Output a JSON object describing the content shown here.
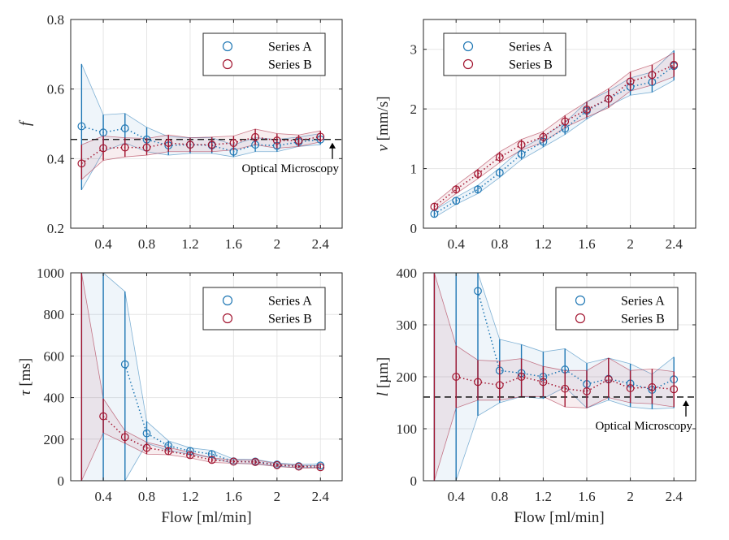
{
  "xlabel": "Flow [ml/min]",
  "colors": {
    "A": "#1f77b4",
    "B": "#a2142f"
  },
  "chart_data": [
    {
      "id": "f",
      "type": "line",
      "ylabel": "f",
      "ylabel_unit": "",
      "ylim": [
        0.2,
        0.8
      ],
      "yticks": [
        "0.2",
        "0.4",
        "0.6",
        "0.8"
      ],
      "ytick_values": [
        0.2,
        0.4,
        0.6,
        0.8
      ],
      "xlim": [
        0.1,
        2.6
      ],
      "xticks": [
        "0.4",
        "0.8",
        "1.2",
        "1.6",
        "2",
        "2.4"
      ],
      "xtick_values": [
        0.4,
        0.8,
        1.2,
        1.6,
        2.0,
        2.4
      ],
      "x": [
        0.2,
        0.4,
        0.6,
        0.8,
        1.0,
        1.2,
        1.4,
        1.6,
        1.8,
        2.0,
        2.2,
        2.4
      ],
      "series": [
        {
          "name": "Series A",
          "values": [
            0.493,
            0.475,
            0.487,
            0.455,
            0.438,
            0.44,
            0.438,
            0.42,
            0.44,
            0.437,
            0.448,
            0.455
          ],
          "lower": [
            0.31,
            0.42,
            0.445,
            0.42,
            0.41,
            0.415,
            0.415,
            0.405,
            0.42,
            0.42,
            0.435,
            0.44
          ],
          "upper": [
            0.672,
            0.526,
            0.53,
            0.49,
            0.463,
            0.46,
            0.46,
            0.44,
            0.46,
            0.455,
            0.462,
            0.472
          ]
        },
        {
          "name": "Series B",
          "values": [
            0.386,
            0.43,
            0.432,
            0.432,
            0.445,
            0.44,
            0.44,
            0.445,
            0.462,
            0.452,
            0.452,
            0.463
          ],
          "lower": [
            0.34,
            0.395,
            0.405,
            0.41,
            0.42,
            0.42,
            0.42,
            0.425,
            0.44,
            0.43,
            0.435,
            0.448
          ],
          "upper": [
            0.44,
            0.465,
            0.46,
            0.458,
            0.468,
            0.46,
            0.462,
            0.465,
            0.485,
            0.472,
            0.468,
            0.48
          ]
        }
      ],
      "reference": {
        "value": 0.455,
        "label": "Optical Microscopy"
      },
      "legend": [
        "Series A",
        "Series B"
      ]
    },
    {
      "id": "v",
      "type": "line",
      "ylabel": "v",
      "ylabel_unit": "[mm/s]",
      "ylim": [
        0,
        3.5
      ],
      "yticks": [
        "0",
        "1",
        "2",
        "3"
      ],
      "ytick_values": [
        0,
        1,
        2,
        3
      ],
      "xlim": [
        0.1,
        2.6
      ],
      "xticks": [
        "0.4",
        "0.8",
        "1.2",
        "1.6",
        "2",
        "2.4"
      ],
      "xtick_values": [
        0.4,
        0.8,
        1.2,
        1.6,
        2.0,
        2.4
      ],
      "x": [
        0.2,
        0.4,
        0.6,
        0.8,
        1.0,
        1.2,
        1.4,
        1.6,
        1.8,
        2.0,
        2.2,
        2.4
      ],
      "series": [
        {
          "name": "Series A",
          "values": [
            0.24,
            0.46,
            0.65,
            0.93,
            1.24,
            1.45,
            1.67,
            1.97,
            2.17,
            2.37,
            2.45,
            2.72
          ],
          "lower": [
            0.18,
            0.4,
            0.58,
            0.85,
            1.15,
            1.36,
            1.57,
            1.83,
            2.05,
            2.23,
            2.28,
            2.48
          ],
          "upper": [
            0.3,
            0.52,
            0.72,
            1.01,
            1.33,
            1.54,
            1.77,
            2.12,
            2.3,
            2.52,
            2.62,
            2.98
          ]
        },
        {
          "name": "Series B",
          "values": [
            0.36,
            0.65,
            0.91,
            1.19,
            1.4,
            1.53,
            1.79,
            1.99,
            2.17,
            2.46,
            2.57,
            2.74
          ],
          "lower": [
            0.31,
            0.58,
            0.83,
            1.1,
            1.31,
            1.44,
            1.69,
            1.86,
            2.02,
            2.3,
            2.4,
            2.54
          ],
          "upper": [
            0.42,
            0.72,
            0.99,
            1.28,
            1.49,
            1.62,
            1.89,
            2.12,
            2.34,
            2.62,
            2.74,
            2.94
          ]
        }
      ],
      "legend": [
        "Series A",
        "Series B"
      ]
    },
    {
      "id": "tau",
      "type": "line",
      "ylabel": "τ",
      "ylabel_unit": "[ms]",
      "ylim": [
        0,
        1000
      ],
      "yticks": [
        "0",
        "200",
        "400",
        "600",
        "800",
        "1000"
      ],
      "ytick_values": [
        0,
        200,
        400,
        600,
        800,
        1000
      ],
      "xlim": [
        0.1,
        2.6
      ],
      "xticks": [
        "0.4",
        "0.8",
        "1.2",
        "1.6",
        "2",
        "2.4"
      ],
      "xtick_values": [
        0.4,
        0.8,
        1.2,
        1.6,
        2.0,
        2.4
      ],
      "x": [
        0.2,
        0.4,
        0.6,
        0.8,
        1.0,
        1.2,
        1.4,
        1.6,
        1.8,
        2.0,
        2.2,
        2.4
      ],
      "series": [
        {
          "name": "Series A",
          "values": [
            null,
            null,
            560,
            228,
            168,
            143,
            128,
            93,
            92,
            78,
            70,
            73
          ],
          "lower": [
            0,
            0,
            0,
            180,
            145,
            128,
            110,
            83,
            82,
            70,
            62,
            66
          ],
          "upper": [
            1000,
            1000,
            910,
            285,
            192,
            158,
            146,
            104,
            102,
            86,
            78,
            82
          ]
        },
        {
          "name": "Series B",
          "values": [
            null,
            310,
            210,
            158,
            142,
            123,
            100,
            92,
            90,
            75,
            68,
            65
          ],
          "lower": [
            0,
            230,
            180,
            128,
            125,
            110,
            88,
            84,
            80,
            68,
            62,
            59
          ],
          "upper": [
            1000,
            395,
            240,
            185,
            160,
            136,
            110,
            100,
            100,
            82,
            74,
            72
          ]
        }
      ],
      "legend": [
        "Series A",
        "Series B"
      ]
    },
    {
      "id": "l",
      "type": "line",
      "ylabel": "l",
      "ylabel_unit": "[µm]",
      "ylim": [
        0,
        400
      ],
      "yticks": [
        "0",
        "100",
        "200",
        "300",
        "400"
      ],
      "ytick_values": [
        0,
        100,
        200,
        300,
        400
      ],
      "xlim": [
        0.1,
        2.6
      ],
      "xticks": [
        "0.4",
        "0.8",
        "1.2",
        "1.6",
        "2",
        "2.4"
      ],
      "xtick_values": [
        0.4,
        0.8,
        1.2,
        1.6,
        2.0,
        2.4
      ],
      "x": [
        0.2,
        0.4,
        0.6,
        0.8,
        1.0,
        1.2,
        1.4,
        1.6,
        1.8,
        2.0,
        2.2,
        2.4
      ],
      "series": [
        {
          "name": "Series A",
          "values": [
            null,
            null,
            365,
            212,
            207,
            200,
            214,
            186,
            196,
            187,
            175,
            195
          ],
          "lower": [
            0,
            0,
            125,
            150,
            162,
            158,
            180,
            140,
            155,
            142,
            138,
            140
          ],
          "upper": [
            400,
            400,
            400,
            272,
            262,
            248,
            254,
            226,
            236,
            225,
            205,
            238
          ]
        },
        {
          "name": "Series B",
          "values": [
            null,
            200,
            190,
            184,
            200,
            190,
            177,
            172,
            195,
            178,
            180,
            176
          ],
          "lower": [
            0,
            140,
            155,
            155,
            162,
            162,
            142,
            140,
            160,
            150,
            148,
            142
          ],
          "upper": [
            400,
            260,
            232,
            230,
            235,
            220,
            212,
            212,
            236,
            212,
            215,
            210
          ]
        }
      ],
      "reference": {
        "value": 161,
        "label": "Optical Microscopy"
      },
      "legend": [
        "Series A",
        "Series B"
      ]
    }
  ]
}
